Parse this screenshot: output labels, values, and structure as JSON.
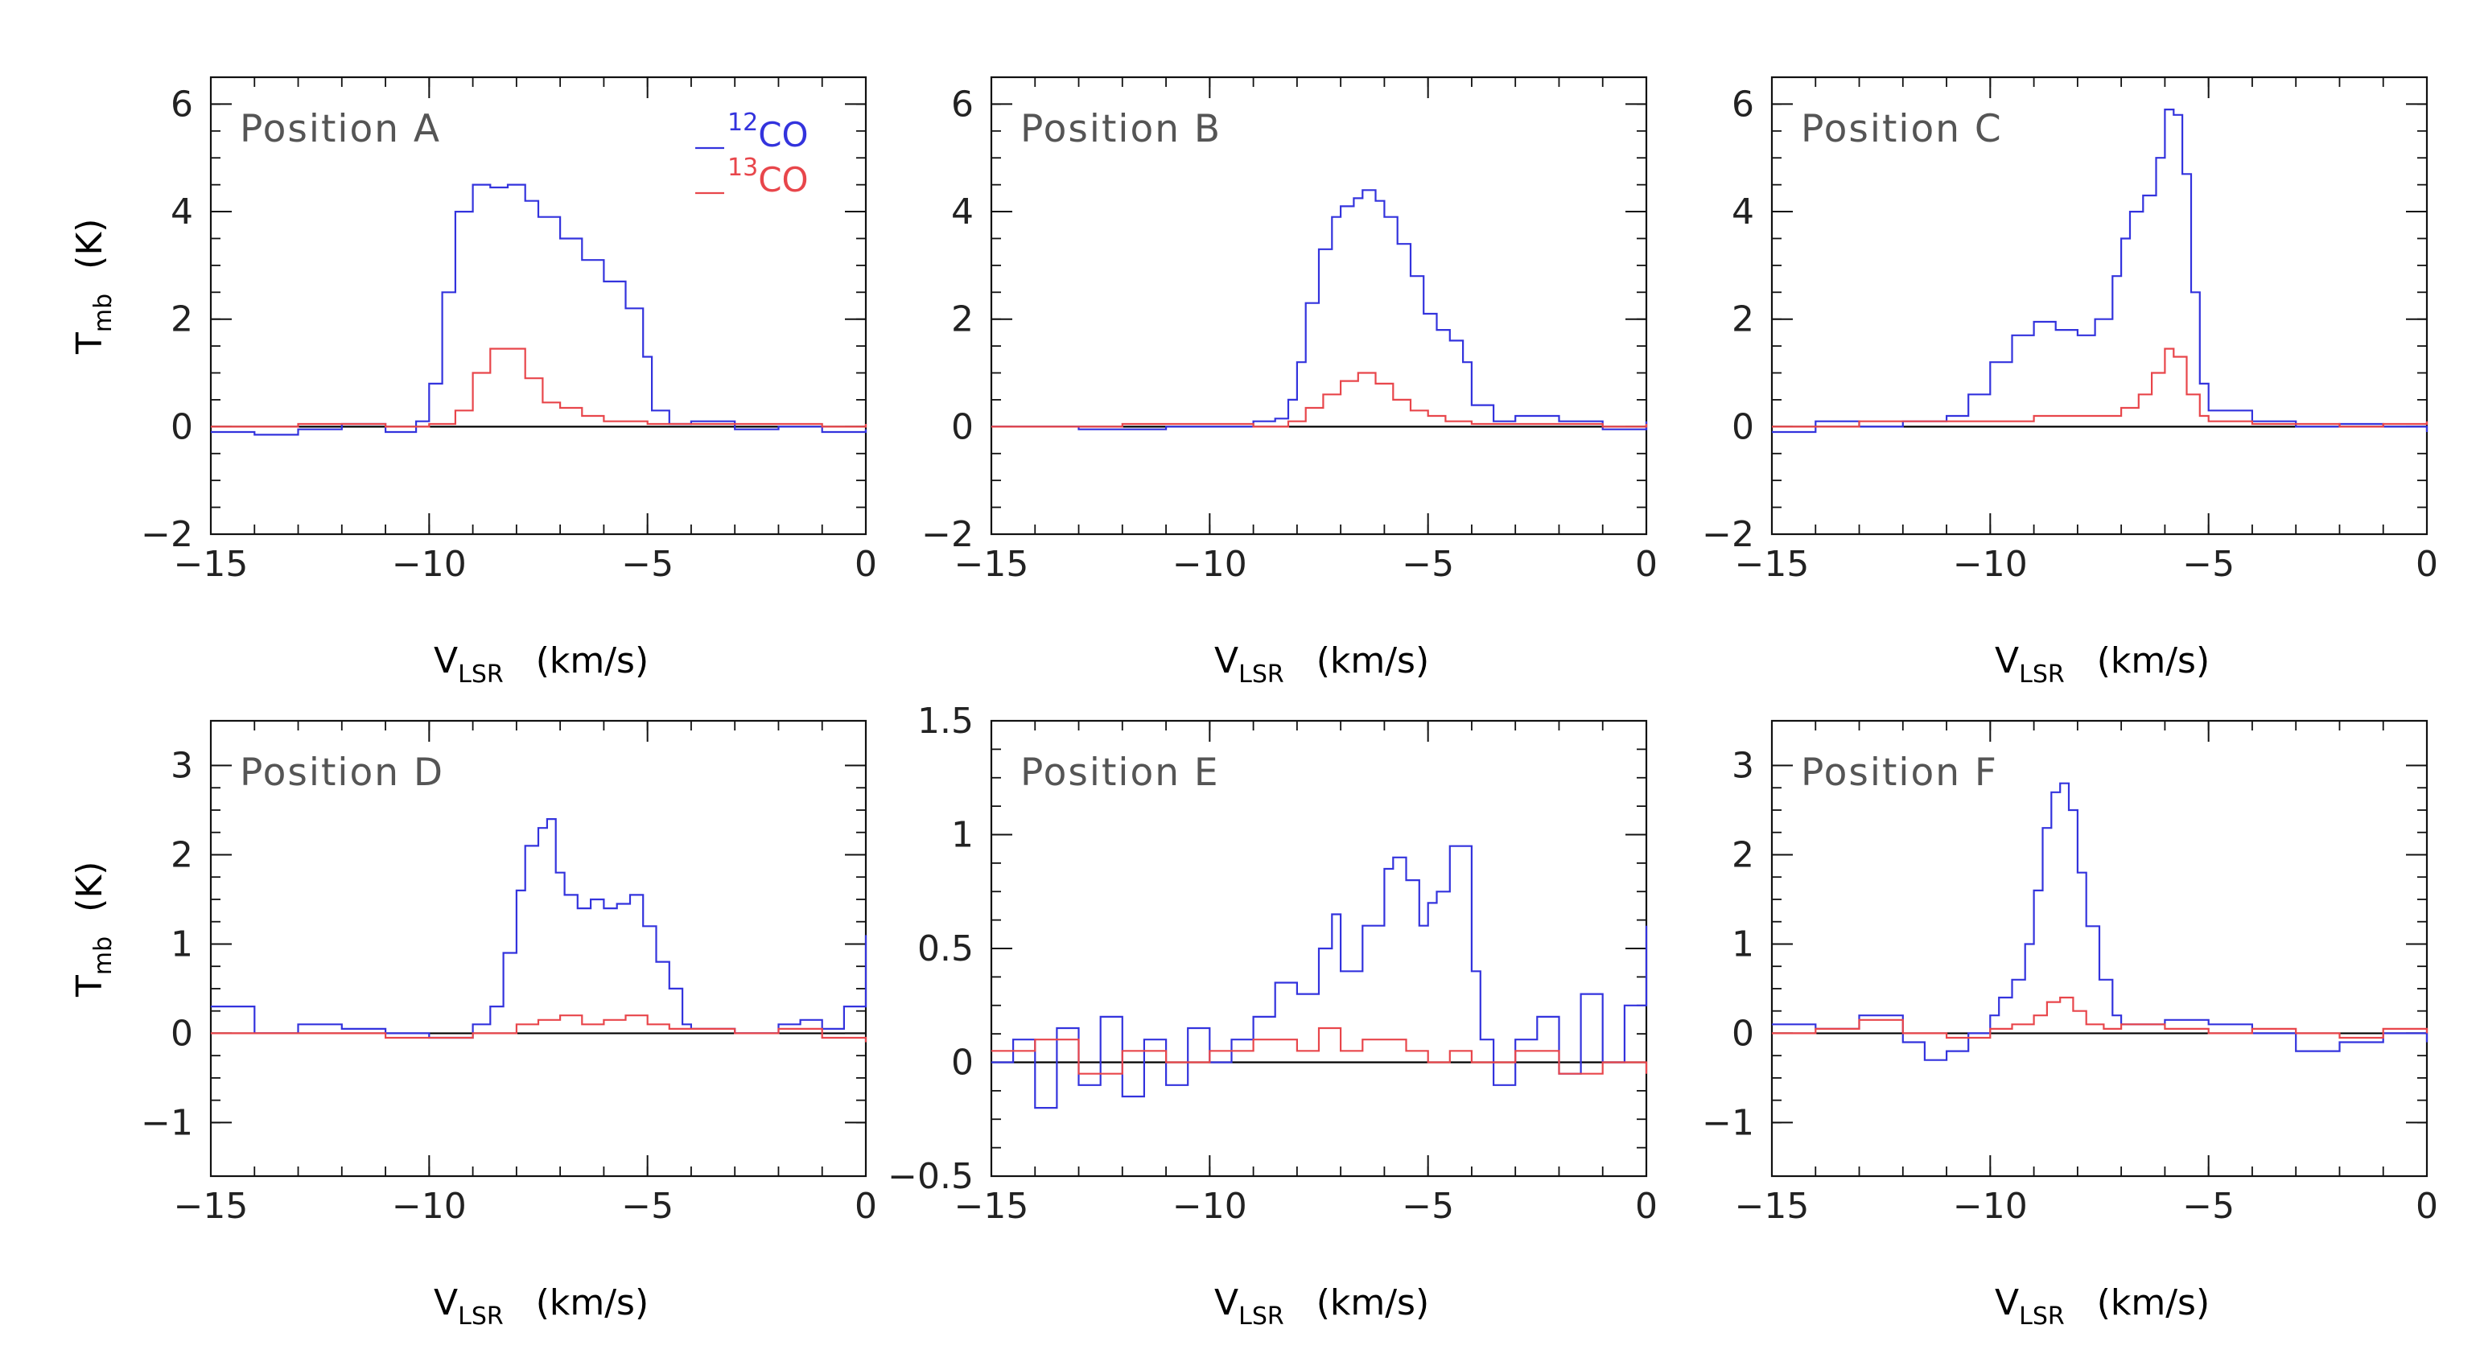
{
  "chart_data": [
    {
      "type": "line",
      "title": "Position A",
      "xlabel": "V_LSR (km/s)",
      "xlabel_main": "V",
      "xlabel_sub": "LSR",
      "xlabel_units": "(km/s)",
      "ylabel": "T_mb (K)",
      "ylabel_main": "T",
      "ylabel_sub": "mb",
      "ylabel_units": "(K)",
      "xlim": [
        -15,
        0
      ],
      "ylim": [
        -2,
        6.5
      ],
      "xticks": [
        -15,
        -10,
        -5,
        0
      ],
      "xtick_labels": [
        "−15",
        "−10",
        "−5",
        "0"
      ],
      "yticks": [
        -2,
        0,
        2,
        4,
        6
      ],
      "ytick_labels": [
        "−2",
        "0",
        "2",
        "4",
        "6"
      ],
      "legend": {
        "location": "top-right",
        "entries": [
          {
            "sup": "12",
            "text": "CO",
            "label": "12CO",
            "color": "#3333dd"
          },
          {
            "sup": "13",
            "text": "CO",
            "label": "13CO",
            "color": "#e8464b"
          }
        ]
      },
      "series": [
        {
          "name": "12CO",
          "color": "#3333dd",
          "x": [
            -15,
            -14,
            -13,
            -12,
            -11,
            -10.3,
            -10,
            -9.7,
            -9.4,
            -9,
            -8.6,
            -8.2,
            -7.8,
            -7.5,
            -7,
            -6.5,
            -6,
            -5.5,
            -5.1,
            -4.9,
            -4.5,
            -4,
            -3,
            -2,
            -1,
            0
          ],
          "values": [
            -0.1,
            -0.15,
            -0.05,
            0.05,
            -0.1,
            0.1,
            0.8,
            2.5,
            4.0,
            4.5,
            4.45,
            4.5,
            4.2,
            3.9,
            3.5,
            3.1,
            2.7,
            2.2,
            1.3,
            0.3,
            0.05,
            0.1,
            -0.05,
            0.0,
            -0.1,
            -0.05
          ]
        },
        {
          "name": "13CO",
          "color": "#e8464b",
          "x": [
            -15,
            -13,
            -11,
            -10,
            -9.4,
            -9,
            -8.6,
            -8.2,
            -7.8,
            -7.4,
            -7,
            -6.5,
            -6,
            -5,
            -3,
            -1,
            0
          ],
          "values": [
            0.0,
            0.05,
            0.0,
            0.05,
            0.3,
            1.0,
            1.45,
            1.45,
            0.9,
            0.45,
            0.35,
            0.2,
            0.1,
            0.05,
            0.05,
            0.0,
            0.05
          ]
        }
      ]
    },
    {
      "type": "line",
      "title": "Position B",
      "xlabel": "V_LSR (km/s)",
      "xlabel_main": "V",
      "xlabel_sub": "LSR",
      "xlabel_units": "(km/s)",
      "xlim": [
        -15,
        0
      ],
      "ylim": [
        -2,
        6.5
      ],
      "xticks": [
        -15,
        -10,
        -5,
        0
      ],
      "xtick_labels": [
        "−15",
        "−10",
        "−5",
        "0"
      ],
      "yticks": [
        -2,
        0,
        2,
        4,
        6
      ],
      "ytick_labels": [
        "−2",
        "0",
        "2",
        "4",
        "6"
      ],
      "series": [
        {
          "name": "12CO",
          "color": "#3333dd",
          "x": [
            -15,
            -13,
            -11,
            -9,
            -8.5,
            -8.2,
            -8,
            -7.8,
            -7.5,
            -7.2,
            -7,
            -6.7,
            -6.5,
            -6.2,
            -6,
            -5.7,
            -5.4,
            -5.1,
            -4.8,
            -4.5,
            -4.2,
            -4,
            -3.5,
            -3,
            -2,
            -1,
            0
          ],
          "values": [
            0.0,
            -0.05,
            0.0,
            0.1,
            0.15,
            0.5,
            1.2,
            2.3,
            3.3,
            3.9,
            4.1,
            4.25,
            4.4,
            4.2,
            3.9,
            3.4,
            2.8,
            2.1,
            1.8,
            1.6,
            1.2,
            0.4,
            0.1,
            0.2,
            0.1,
            -0.05,
            0.1
          ]
        },
        {
          "name": "13CO",
          "color": "#e8464b",
          "x": [
            -15,
            -12,
            -9,
            -8.2,
            -7.8,
            -7.4,
            -7,
            -6.6,
            -6.2,
            -5.8,
            -5.4,
            -5,
            -4.6,
            -4,
            -3,
            -1,
            0
          ],
          "values": [
            0.0,
            0.05,
            0.0,
            0.1,
            0.35,
            0.6,
            0.85,
            1.0,
            0.8,
            0.5,
            0.3,
            0.2,
            0.1,
            0.05,
            0.05,
            0.0,
            0.05
          ]
        }
      ]
    },
    {
      "type": "line",
      "title": "Position C",
      "xlabel": "V_LSR (km/s)",
      "xlabel_main": "V",
      "xlabel_sub": "LSR",
      "xlabel_units": "(km/s)",
      "xlim": [
        -15,
        0
      ],
      "ylim": [
        -2,
        6.5
      ],
      "xticks": [
        -15,
        -10,
        -5,
        0
      ],
      "xtick_labels": [
        "−15",
        "−10",
        "−5",
        "0"
      ],
      "yticks": [
        -2,
        0,
        2,
        4,
        6
      ],
      "ytick_labels": [
        "−2",
        "0",
        "2",
        "4",
        "6"
      ],
      "series": [
        {
          "name": "12CO",
          "color": "#3333dd",
          "x": [
            -15,
            -14,
            -13,
            -12,
            -11,
            -10.5,
            -10,
            -9.5,
            -9,
            -8.5,
            -8,
            -7.6,
            -7.2,
            -7,
            -6.8,
            -6.5,
            -6.2,
            -6,
            -5.8,
            -5.6,
            -5.4,
            -5.2,
            -5,
            -4,
            -3,
            -2,
            -1,
            0
          ],
          "values": [
            -0.1,
            0.1,
            0.0,
            0.1,
            0.2,
            0.6,
            1.2,
            1.7,
            1.95,
            1.8,
            1.7,
            2.0,
            2.8,
            3.5,
            4.0,
            4.3,
            5.0,
            5.9,
            5.8,
            4.7,
            2.5,
            0.8,
            0.3,
            0.1,
            0.0,
            0.05,
            0.0,
            -0.1
          ]
        },
        {
          "name": "13CO",
          "color": "#e8464b",
          "x": [
            -15,
            -13,
            -11,
            -9,
            -7.5,
            -7,
            -6.6,
            -6.3,
            -6,
            -5.8,
            -5.5,
            -5.2,
            -5,
            -4,
            -3,
            -2,
            -1,
            0
          ],
          "values": [
            0.0,
            0.1,
            0.1,
            0.2,
            0.2,
            0.35,
            0.6,
            1.0,
            1.45,
            1.3,
            0.6,
            0.2,
            0.1,
            0.05,
            0.05,
            0.0,
            0.05,
            0.1
          ]
        }
      ]
    },
    {
      "type": "line",
      "title": "Position D",
      "xlabel": "V_LSR (km/s)",
      "xlabel_main": "V",
      "xlabel_sub": "LSR",
      "xlabel_units": "(km/s)",
      "ylabel": "T_mb (K)",
      "ylabel_main": "T",
      "ylabel_sub": "mb",
      "ylabel_units": "(K)",
      "xlim": [
        -15,
        0
      ],
      "ylim": [
        -1.6,
        3.5
      ],
      "xticks": [
        -15,
        -10,
        -5,
        0
      ],
      "xtick_labels": [
        "−15",
        "−10",
        "−5",
        "0"
      ],
      "yticks": [
        -1,
        0,
        1,
        2,
        3
      ],
      "ytick_labels": [
        "−1",
        "0",
        "1",
        "2",
        "3"
      ],
      "series": [
        {
          "name": "12CO",
          "color": "#3333dd",
          "x": [
            -15,
            -14,
            -13,
            -12,
            -11,
            -10,
            -9,
            -8.6,
            -8.3,
            -8,
            -7.8,
            -7.5,
            -7.3,
            -7.1,
            -6.9,
            -6.6,
            -6.3,
            -6,
            -5.7,
            -5.4,
            -5.1,
            -4.8,
            -4.5,
            -4.2,
            -4,
            -3,
            -2,
            -1.5,
            -1,
            -0.5,
            0
          ],
          "values": [
            0.3,
            0.0,
            0.1,
            0.05,
            0.0,
            -0.05,
            0.1,
            0.3,
            0.9,
            1.6,
            2.1,
            2.3,
            2.4,
            1.8,
            1.55,
            1.4,
            1.5,
            1.4,
            1.45,
            1.55,
            1.2,
            0.8,
            0.5,
            0.1,
            0.05,
            0.0,
            0.1,
            0.15,
            0.05,
            0.3,
            1.1
          ]
        },
        {
          "name": "13CO",
          "color": "#e8464b",
          "x": [
            -15,
            -13,
            -11,
            -9,
            -8,
            -7.5,
            -7,
            -6.5,
            -6,
            -5.5,
            -5,
            -4.5,
            -4,
            -3,
            -2,
            -1,
            0
          ],
          "values": [
            0.0,
            0.0,
            -0.05,
            0.0,
            0.1,
            0.15,
            0.2,
            0.1,
            0.15,
            0.2,
            0.1,
            0.05,
            0.05,
            0.0,
            0.05,
            -0.05,
            -0.1
          ]
        }
      ]
    },
    {
      "type": "line",
      "title": "Position E",
      "xlabel": "V_LSR (km/s)",
      "xlabel_main": "V",
      "xlabel_sub": "LSR",
      "xlabel_units": "(km/s)",
      "xlim": [
        -15,
        0
      ],
      "ylim": [
        -0.5,
        1.5
      ],
      "xticks": [
        -15,
        -10,
        -5,
        0
      ],
      "xtick_labels": [
        "−15",
        "−10",
        "−5",
        "0"
      ],
      "yticks": [
        -0.5,
        0,
        0.5,
        1,
        1.5
      ],
      "ytick_labels": [
        "−0.5",
        "0",
        "0.5",
        "1",
        "1.5"
      ],
      "series": [
        {
          "name": "12CO",
          "color": "#3333dd",
          "x": [
            -15,
            -14.5,
            -14,
            -13.5,
            -13,
            -12.5,
            -12,
            -11.5,
            -11,
            -10.5,
            -10,
            -9.5,
            -9,
            -8.5,
            -8,
            -7.5,
            -7.2,
            -7,
            -6.5,
            -6,
            -5.8,
            -5.5,
            -5.2,
            -5,
            -4.8,
            -4.5,
            -4.3,
            -4,
            -3.8,
            -3.5,
            -3,
            -2.5,
            -2,
            -1.5,
            -1,
            -0.5,
            0
          ],
          "values": [
            0.0,
            0.1,
            -0.2,
            0.15,
            -0.1,
            0.2,
            -0.15,
            0.1,
            -0.1,
            0.15,
            0.0,
            0.1,
            0.2,
            0.35,
            0.3,
            0.5,
            0.65,
            0.4,
            0.6,
            0.85,
            0.9,
            0.8,
            0.6,
            0.7,
            0.75,
            0.95,
            0.95,
            0.4,
            0.1,
            -0.1,
            0.1,
            0.2,
            -0.05,
            0.3,
            0.0,
            0.25,
            0.6
          ]
        },
        {
          "name": "13CO",
          "color": "#e8464b",
          "x": [
            -15,
            -14,
            -13,
            -12,
            -11,
            -10,
            -9,
            -8,
            -7.5,
            -7,
            -6.5,
            -6,
            -5.5,
            -5,
            -4.5,
            -4,
            -3,
            -2,
            -1,
            0
          ],
          "values": [
            0.05,
            0.1,
            -0.05,
            0.05,
            0.0,
            0.05,
            0.1,
            0.05,
            0.15,
            0.05,
            0.1,
            0.1,
            0.05,
            0.0,
            0.05,
            0.0,
            0.05,
            -0.05,
            0.0,
            -0.05
          ]
        }
      ]
    },
    {
      "type": "line",
      "title": "Position F",
      "xlabel": "V_LSR (km/s)",
      "xlabel_main": "V",
      "xlabel_sub": "LSR",
      "xlabel_units": "(km/s)",
      "xlim": [
        -15,
        0
      ],
      "ylim": [
        -1.6,
        3.5
      ],
      "xticks": [
        -15,
        -10,
        -5,
        0
      ],
      "xtick_labels": [
        "−15",
        "−10",
        "−5",
        "0"
      ],
      "yticks": [
        -1,
        0,
        1,
        2,
        3
      ],
      "ytick_labels": [
        "−1",
        "0",
        "1",
        "2",
        "3"
      ],
      "series": [
        {
          "name": "12CO",
          "color": "#3333dd",
          "x": [
            -15,
            -14,
            -13,
            -12,
            -11.5,
            -11,
            -10.5,
            -10,
            -9.8,
            -9.5,
            -9.2,
            -9,
            -8.8,
            -8.6,
            -8.4,
            -8.2,
            -8,
            -7.8,
            -7.5,
            -7.2,
            -7,
            -6,
            -5,
            -4,
            -3,
            -2,
            -1,
            0
          ],
          "values": [
            0.1,
            0.05,
            0.2,
            -0.1,
            -0.3,
            -0.2,
            0.0,
            0.2,
            0.4,
            0.6,
            1.0,
            1.6,
            2.3,
            2.7,
            2.8,
            2.5,
            1.8,
            1.2,
            0.6,
            0.2,
            0.1,
            0.15,
            0.1,
            0.0,
            -0.2,
            -0.1,
            0.0,
            -0.1
          ]
        },
        {
          "name": "13CO",
          "color": "#e8464b",
          "x": [
            -15,
            -14,
            -13,
            -12,
            -11,
            -10,
            -9.5,
            -9,
            -8.7,
            -8.4,
            -8.1,
            -7.8,
            -7.4,
            -7,
            -6,
            -5,
            -4,
            -3,
            -2,
            -1,
            0
          ],
          "values": [
            0.0,
            0.05,
            0.15,
            0.0,
            -0.05,
            0.05,
            0.1,
            0.2,
            0.35,
            0.4,
            0.25,
            0.1,
            0.05,
            0.1,
            0.05,
            0.0,
            0.05,
            0.0,
            -0.05,
            0.05,
            0.0
          ]
        }
      ]
    }
  ]
}
